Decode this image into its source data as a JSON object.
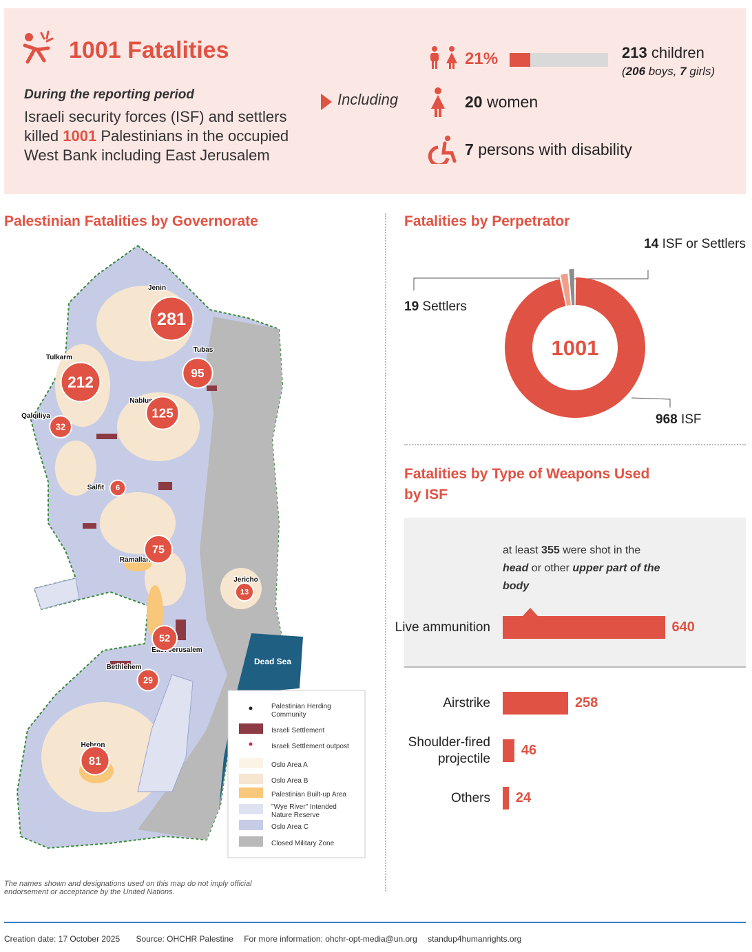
{
  "header": {
    "title": "1001 Fatalities",
    "subtitle": "During the reporting period",
    "summary": [
      "Israeli security forces (ISF) and settlers killed",
      "1001",
      "Palestinians in the occupied West Bank including East Jerusalem"
    ],
    "including": "Including",
    "children": {
      "share": 21,
      "share_label": "21%",
      "count": "213",
      "label": "children",
      "detail": [
        "(",
        "206",
        "boys,",
        "7",
        "girls)"
      ]
    },
    "women": {
      "count": "20",
      "label": "women"
    },
    "disability": {
      "count": "7",
      "label": "persons with disability"
    }
  },
  "map": {
    "title": "Palestinian Fatalities by Governorate",
    "governorates": [
      {
        "name": "Jenin",
        "value": 281
      },
      {
        "name": "Tulkarm",
        "value": 212
      },
      {
        "name": "Tubas",
        "value": 95
      },
      {
        "name": "Nablus",
        "value": 125
      },
      {
        "name": "Qalqiliya",
        "value": 32
      },
      {
        "name": "Salfit",
        "value": 6
      },
      {
        "name": "Ramallah",
        "value": 75
      },
      {
        "name": "Jericho",
        "value": 13
      },
      {
        "name": "East Jerusalem",
        "value": 52
      },
      {
        "name": "Bethlehem",
        "value": 29
      },
      {
        "name": "Hebron",
        "value": 81
      }
    ],
    "dead_sea": "Dead Sea",
    "legend": [
      "Palestinian Herding Community",
      "Israeli Settlement",
      "Israeli Settlement outpost",
      "Oslo Area A",
      "Oslo Area B",
      "Palestinian Built-up Area",
      "\"Wye River\" Intended Nature Reserve",
      "Oslo Area C",
      "Closed Military Zone"
    ],
    "disclaimer": "The names shown and designations used on this map do not imply official endorsement or acceptance by the United Nations."
  },
  "chart_data": [
    {
      "type": "pie",
      "title": "Fatalities by Perpetrator",
      "total": 1001,
      "categories": [
        "ISF",
        "Settlers",
        "ISF or Settlers"
      ],
      "values": [
        968,
        19,
        14
      ],
      "colors": [
        "#e05243",
        "#f0a08a",
        "#8c8c8c"
      ]
    },
    {
      "type": "bar",
      "title": "Fatalities by Type of Weapons Used by ISF",
      "categories": [
        "Live ammunition",
        "Airstrike",
        "Shoulder-fired projectile",
        "Others"
      ],
      "values": [
        640,
        258,
        46,
        24
      ],
      "color": "#e05243",
      "annotation": [
        "at least",
        "355",
        "were shot",
        "in the",
        "head",
        "or other",
        "upper part of the body"
      ]
    }
  ],
  "footer": [
    "Creation date: 17 October 2025",
    "Source: OHCHR Palestine",
    "For more information: ohchr-opt-media@un.org",
    "standup4humanrights.org"
  ]
}
